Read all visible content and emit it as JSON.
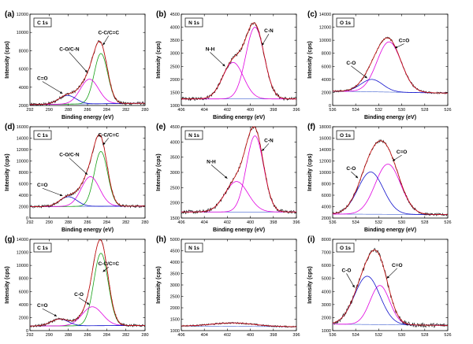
{
  "chart_data": [
    {
      "id": "a",
      "panel_label": "(a)",
      "type": "line",
      "element": "C 1s",
      "xlabel": "Binding energy (eV)",
      "ylabel": "Intensity (cps)",
      "xlim": [
        292,
        280
      ],
      "ylim": [
        2000,
        12000
      ],
      "xticks": [
        292,
        290,
        288,
        286,
        284,
        282,
        280
      ],
      "yticks": [
        2000,
        4000,
        6000,
        8000,
        10000,
        12000
      ],
      "peaks": [
        {
          "label": "C-C/C=C",
          "center": 284.6,
          "sigma": 0.7,
          "amp": 5500,
          "color": "#16a016"
        },
        {
          "label": "C-O/C-N",
          "center": 285.8,
          "sigma": 0.95,
          "amp": 2700,
          "color": "#e000e0"
        },
        {
          "label": "C=O",
          "center": 288.1,
          "sigma": 0.9,
          "amp": 950,
          "color": "#1010cc"
        }
      ],
      "background": {
        "left": 2100,
        "right": 2250
      },
      "noise": 170,
      "annotations": [
        {
          "text": "C-C/C=C",
          "x": 283.8,
          "y": 9800,
          "ax": 284.4,
          "ay": 8600
        },
        {
          "text": "C-O/C-N",
          "x": 287.9,
          "y": 8000,
          "ax": 286.0,
          "ay": 5600
        },
        {
          "text": "C=O",
          "x": 290.7,
          "y": 4800,
          "ax": 288.6,
          "ay": 3300
        }
      ]
    },
    {
      "id": "b",
      "panel_label": "(b)",
      "type": "line",
      "element": "N 1s",
      "xlabel": "Binding energy (eV)",
      "ylabel": "Intensity (cps)",
      "xlim": [
        406,
        396
      ],
      "ylim": [
        1000,
        4500
      ],
      "xticks": [
        406,
        404,
        402,
        400,
        398,
        396
      ],
      "yticks": [
        1000,
        1500,
        2000,
        2500,
        3000,
        3500,
        4000,
        4500
      ],
      "peaks": [
        {
          "label": "C-N",
          "center": 399.6,
          "sigma": 0.8,
          "amp": 2750,
          "color": "#e000e0"
        },
        {
          "label": "N-H",
          "center": 401.5,
          "sigma": 0.9,
          "amp": 1400,
          "color": "#e000e0"
        }
      ],
      "background": {
        "left": 1250,
        "right": 1250
      },
      "noise": 70,
      "annotations": [
        {
          "text": "C-N",
          "x": 398.4,
          "y": 3800,
          "ax": 399.0,
          "ay": 3300
        },
        {
          "text": "N-H",
          "x": 403.5,
          "y": 3100,
          "ax": 402.2,
          "ay": 2500
        }
      ]
    },
    {
      "id": "c",
      "panel_label": "(c)",
      "type": "line",
      "element": "O 1s",
      "xlabel": "Binding energy (eV)",
      "ylabel": "Intensity (cps)",
      "xlim": [
        536,
        526
      ],
      "ylim": [
        0,
        14000
      ],
      "xticks": [
        536,
        534,
        532,
        530,
        528,
        526
      ],
      "yticks": [
        0,
        2000,
        4000,
        6000,
        8000,
        10000,
        12000,
        14000
      ],
      "peaks": [
        {
          "label": "C=O",
          "center": 531.1,
          "sigma": 1.05,
          "amp": 7700,
          "color": "#e000e0"
        },
        {
          "label": "C-O",
          "center": 532.6,
          "sigma": 0.95,
          "amp": 1900,
          "color": "#1010cc"
        }
      ],
      "background": {
        "left": 2200,
        "right": 1900
      },
      "noise": 150,
      "annotations": [
        {
          "text": "C=O",
          "x": 529.8,
          "y": 9700,
          "ax": 530.6,
          "ay": 8800
        },
        {
          "text": "C-O",
          "x": 534.4,
          "y": 6300,
          "ax": 533.0,
          "ay": 4200
        }
      ]
    },
    {
      "id": "d",
      "panel_label": "(d)",
      "type": "line",
      "element": "C 1s",
      "xlabel": "Binding energy (eV)",
      "ylabel": "Intensity (cps)",
      "xlim": [
        292,
        280
      ],
      "ylim": [
        0,
        16000
      ],
      "xticks": [
        292,
        290,
        288,
        286,
        284,
        282,
        280
      ],
      "yticks": [
        0,
        2000,
        4000,
        6000,
        8000,
        10000,
        12000,
        14000,
        16000
      ],
      "peaks": [
        {
          "label": "C-C/C=C",
          "center": 284.6,
          "sigma": 0.7,
          "amp": 9600,
          "color": "#16a016"
        },
        {
          "label": "C-O/C-N",
          "center": 285.7,
          "sigma": 0.95,
          "amp": 5200,
          "color": "#e000e0"
        },
        {
          "label": "C=O",
          "center": 288.0,
          "sigma": 0.9,
          "amp": 1700,
          "color": "#1010cc"
        }
      ],
      "background": {
        "left": 2000,
        "right": 2100
      },
      "noise": 250,
      "annotations": [
        {
          "text": "C-C/C=C",
          "x": 283.8,
          "y": 14300,
          "ax": 284.4,
          "ay": 12800
        },
        {
          "text": "C-O/C-N",
          "x": 287.9,
          "y": 10800,
          "ax": 286.0,
          "ay": 7600
        },
        {
          "text": "C=O",
          "x": 290.7,
          "y": 5500,
          "ax": 288.6,
          "ay": 3900
        }
      ]
    },
    {
      "id": "e",
      "panel_label": "(e)",
      "type": "line",
      "element": "N 1s",
      "xlabel": "Binding energy (eV)",
      "ylabel": "Intensity (cps)",
      "xlim": [
        406,
        396
      ],
      "ylim": [
        1500,
        4500
      ],
      "xticks": [
        406,
        404,
        402,
        400,
        398,
        396
      ],
      "yticks": [
        1500,
        2000,
        2500,
        3000,
        3500,
        4000,
        4500
      ],
      "peaks": [
        {
          "label": "C-N",
          "center": 399.6,
          "sigma": 0.75,
          "amp": 2500,
          "color": "#e000e0"
        },
        {
          "label": "N-H",
          "center": 401.2,
          "sigma": 1.0,
          "amp": 1000,
          "color": "#e000e0"
        }
      ],
      "background": {
        "left": 1700,
        "right": 1700
      },
      "noise": 60,
      "annotations": [
        {
          "text": "C-N",
          "x": 398.4,
          "y": 4000,
          "ax": 399.0,
          "ay": 3700
        },
        {
          "text": "N-H",
          "x": 403.4,
          "y": 3300,
          "ax": 402.0,
          "ay": 2800
        }
      ]
    },
    {
      "id": "f",
      "panel_label": "(f)",
      "type": "line",
      "element": "O 1s",
      "xlabel": "Binding energy (eV)",
      "ylabel": "Intensity (cps)",
      "xlim": [
        536,
        526
      ],
      "ylim": [
        2000,
        18000
      ],
      "xticks": [
        536,
        534,
        532,
        530,
        528,
        526
      ],
      "yticks": [
        2000,
        4000,
        6000,
        8000,
        10000,
        12000,
        14000,
        16000,
        18000
      ],
      "peaks": [
        {
          "label": "C=O",
          "center": 531.2,
          "sigma": 1.1,
          "amp": 8800,
          "color": "#e000e0"
        },
        {
          "label": "C-O",
          "center": 532.7,
          "sigma": 1.1,
          "amp": 7400,
          "color": "#1010cc"
        }
      ],
      "background": {
        "left": 2700,
        "right": 2600
      },
      "noise": 220,
      "annotations": [
        {
          "text": "C=O",
          "x": 530.0,
          "y": 13300,
          "ax": 530.8,
          "ay": 12000
        },
        {
          "text": "C-O",
          "x": 534.4,
          "y": 10400,
          "ax": 533.8,
          "ay": 9000
        }
      ]
    },
    {
      "id": "g",
      "panel_label": "(g)",
      "type": "line",
      "element": "C 1s",
      "xlabel": "Binding energy (eV)",
      "ylabel": "Intensity (cps)",
      "xlim": [
        292,
        280
      ],
      "ylim": [
        0,
        14000
      ],
      "xticks": [
        292,
        290,
        288,
        286,
        284,
        282,
        280
      ],
      "yticks": [
        0,
        2000,
        4000,
        6000,
        8000,
        10000,
        12000,
        14000
      ],
      "peaks": [
        {
          "label": "C-C/C=C",
          "center": 284.6,
          "sigma": 0.75,
          "amp": 11100,
          "color": "#16a016"
        },
        {
          "label": "C-O",
          "center": 285.5,
          "sigma": 1.05,
          "amp": 2900,
          "color": "#e000e0"
        },
        {
          "label": "C=O",
          "center": 288.9,
          "sigma": 0.9,
          "amp": 1050,
          "color": "#1010cc"
        }
      ],
      "background": {
        "left": 700,
        "right": 800
      },
      "noise": 200,
      "annotations": [
        {
          "text": "C-C/C=C",
          "x": 283.8,
          "y": 10000,
          "ax": 284.4,
          "ay": 9000
        },
        {
          "text": "C-O",
          "x": 286.9,
          "y": 5300,
          "ax": 285.8,
          "ay": 4000
        },
        {
          "text": "C=O",
          "x": 290.7,
          "y": 3600,
          "ax": 289.2,
          "ay": 2200
        }
      ]
    },
    {
      "id": "h",
      "panel_label": "(h)",
      "type": "line",
      "element": "N 1s",
      "xlabel": "Binding energy (eV)",
      "ylabel": "Intensity (cps)",
      "xlim": [
        406,
        396
      ],
      "ylim": [
        1000,
        5000
      ],
      "xticks": [
        406,
        404,
        402,
        400,
        398,
        396
      ],
      "yticks": [
        1000,
        1500,
        2000,
        2500,
        3000,
        3500,
        4000,
        4500,
        5000
      ],
      "peaks": [
        {
          "label": "",
          "center": 401.5,
          "sigma": 1.8,
          "amp": 150,
          "color": "#e000e0"
        }
      ],
      "background": {
        "left": 1200,
        "right": 1170
      },
      "noise": 35,
      "annotations": []
    },
    {
      "id": "i",
      "panel_label": "(i)",
      "type": "line",
      "element": "O 1s",
      "xlabel": "Binding energy (eV)",
      "ylabel": "Intensity (cps)",
      "xlim": [
        536,
        526
      ],
      "ylim": [
        1000,
        8000
      ],
      "xticks": [
        536,
        534,
        532,
        530,
        528,
        526
      ],
      "yticks": [
        1000,
        2000,
        3000,
        4000,
        5000,
        6000,
        7000,
        8000
      ],
      "peaks": [
        {
          "label": "C=O",
          "center": 531.9,
          "sigma": 0.85,
          "amp": 3000,
          "color": "#e000e0"
        },
        {
          "label": "C-O",
          "center": 533.0,
          "sigma": 1.1,
          "amp": 3700,
          "color": "#1010cc"
        }
      ],
      "background": {
        "left": 1500,
        "right": 1400
      },
      "noise": 170,
      "annotations": [
        {
          "text": "C=O",
          "x": 530.4,
          "y": 5900,
          "ax": 531.3,
          "ay": 5000
        },
        {
          "text": "C-O",
          "x": 534.8,
          "y": 5500,
          "ax": 534.1,
          "ay": 4300
        }
      ]
    }
  ]
}
